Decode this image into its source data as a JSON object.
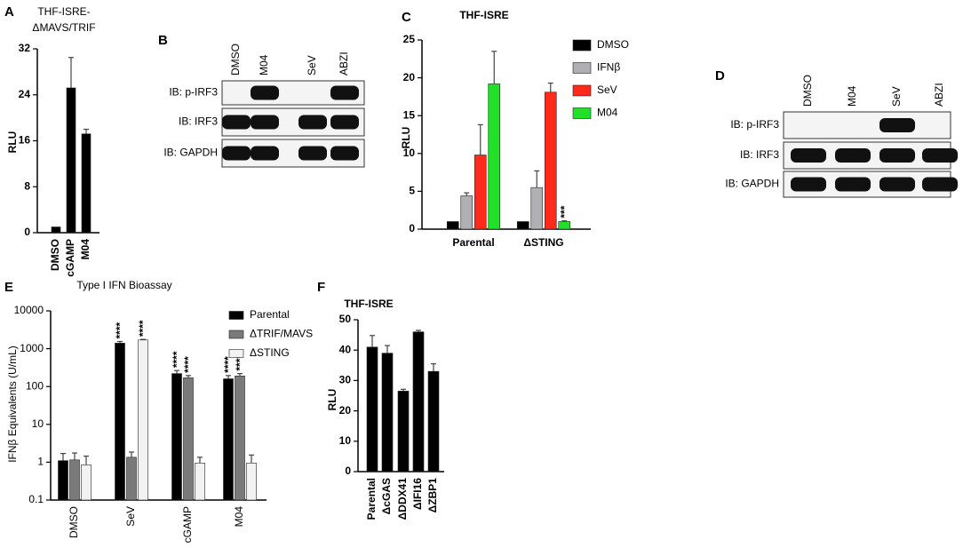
{
  "chart_data": [
    {
      "panel": "A",
      "type": "bar",
      "title": [
        "THF-ISRE-",
        "ΔMAVS/TRIF"
      ],
      "y_label": "RLU",
      "categories": [
        "DMSO",
        "cGAMP",
        "M04"
      ],
      "values": [
        1,
        25.2,
        17.2
      ],
      "errors": [
        null,
        5.3,
        0.8
      ],
      "color": "#000000",
      "ylim": [
        0,
        32
      ],
      "yticks": [
        0,
        8,
        16,
        24,
        32
      ]
    },
    {
      "panel": "C",
      "type": "bar",
      "title": "THF-ISRE",
      "y_label": "RLU",
      "categories": [
        "Parental",
        "ΔSTING"
      ],
      "series": [
        {
          "name": "DMSO",
          "color": "#000000",
          "values": [
            1,
            1
          ],
          "errors": [
            null,
            null
          ],
          "significance": [
            null,
            null
          ]
        },
        {
          "name": "IFNβ",
          "color": "#b0b0b4",
          "values": [
            4.4,
            5.5
          ],
          "errors": [
            0.4,
            2.2
          ],
          "significance": [
            null,
            null
          ]
        },
        {
          "name": "SeV",
          "color": "#ff2a1a",
          "values": [
            9.8,
            18.1
          ],
          "errors": [
            4,
            1.2
          ],
          "significance": [
            null,
            null
          ]
        },
        {
          "name": "M04",
          "color": "#22e02a",
          "values": [
            19.2,
            1
          ],
          "errors": [
            4.3,
            0.1
          ],
          "significance": [
            null,
            "***"
          ]
        }
      ],
      "ylim": [
        0,
        25
      ],
      "yticks": [
        0,
        5,
        10,
        15,
        20,
        25
      ],
      "legend": "right"
    },
    {
      "panel": "E",
      "type": "bar",
      "title": "Type I IFN Bioassay",
      "y_label": "IFNβ Equivalents (U/mL)",
      "log_scale": true,
      "categories": [
        "DMSO",
        "SeV",
        "cGAMP",
        "M04"
      ],
      "series": [
        {
          "name": "Parental",
          "color": "#000000",
          "values": [
            1.1,
            1400,
            220,
            160
          ],
          "errors": [
            0.6,
            150,
            45,
            35
          ],
          "significance": [
            null,
            "****",
            "****",
            "****"
          ]
        },
        {
          "name": "ΔTRIF/MAVS",
          "color": "#7a7a7a",
          "values": [
            1.15,
            1.35,
            170,
            190
          ],
          "errors": [
            0.6,
            0.5,
            25,
            30
          ],
          "significance": [
            null,
            null,
            "****",
            "****"
          ]
        },
        {
          "name": "ΔSTING",
          "color": "#f2f2f2",
          "values": [
            0.85,
            1700,
            0.95,
            0.95
          ],
          "errors": [
            0.6,
            60,
            0.4,
            0.6
          ],
          "significance": [
            null,
            "****",
            null,
            null
          ]
        }
      ],
      "ylim": [
        0.1,
        10000
      ],
      "yticks": [
        0.1,
        1,
        10,
        100,
        1000,
        10000
      ],
      "legend": "upper right"
    },
    {
      "panel": "F",
      "type": "bar",
      "title": "THF-ISRE",
      "y_label": "RLU",
      "categories": [
        "Parental",
        "ΔcGAS",
        "ΔDDX41",
        "ΔIFI16",
        "ΔZBP1"
      ],
      "values": [
        41,
        39,
        26.5,
        46,
        33
      ],
      "errors": [
        3.8,
        2.5,
        0.6,
        0.5,
        2.5
      ],
      "color": "#000000",
      "ylim": [
        0,
        50
      ],
      "yticks": [
        0,
        10,
        20,
        30,
        40,
        50
      ]
    }
  ],
  "blots": [
    {
      "panel": "B",
      "lanes": [
        "DMSO",
        "M04",
        "SeV",
        "ABZI"
      ],
      "rows": [
        "IB: p-IRF3",
        "IB: IRF3",
        "IB: GAPDH"
      ]
    },
    {
      "panel": "D",
      "lanes": [
        "DMSO",
        "M04",
        "SeV",
        "ABZI"
      ],
      "rows": [
        "IB: p-IRF3",
        "IB: IRF3",
        "IB: GAPDH"
      ]
    }
  ]
}
